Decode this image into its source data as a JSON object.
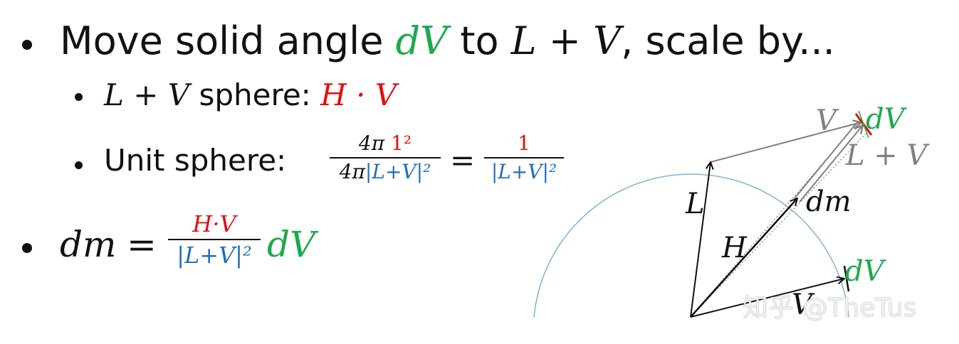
{
  "line1": {
    "text_a": "Move solid angle ",
    "dV": "dV",
    "text_b": " to ",
    "LV": "L + V",
    "text_c": ", scale by..."
  },
  "line2": {
    "LV": "L + V",
    "text": " sphere: ",
    "HV": "H · V"
  },
  "line3": {
    "text": "Unit sphere: ",
    "frac1_num_a": "4π ",
    "frac1_num_b": "1²",
    "frac1_den_a": "4π",
    "frac1_den_b": "|L+V|²",
    "equals": "=",
    "frac2_num": "1",
    "frac2_den": "|L+V|²"
  },
  "line4": {
    "dm": "dm",
    "equals": "=",
    "num": "H·V",
    "den": "|L+V|²",
    "dV": "dV"
  },
  "diagram_labels": {
    "V_top": "V",
    "dV_top": "dV",
    "L_plus_V": "L + V",
    "L": "L",
    "dm": "dm",
    "H": "H",
    "dV_bottom": "dV",
    "V_bottom": "V"
  },
  "watermark": "知乎 @TheTus",
  "colors": {
    "green": "#1ea84e",
    "red": "#e01010",
    "blue": "#1f6fb5",
    "gray": "#808080",
    "circle": "#7fb3d5"
  }
}
